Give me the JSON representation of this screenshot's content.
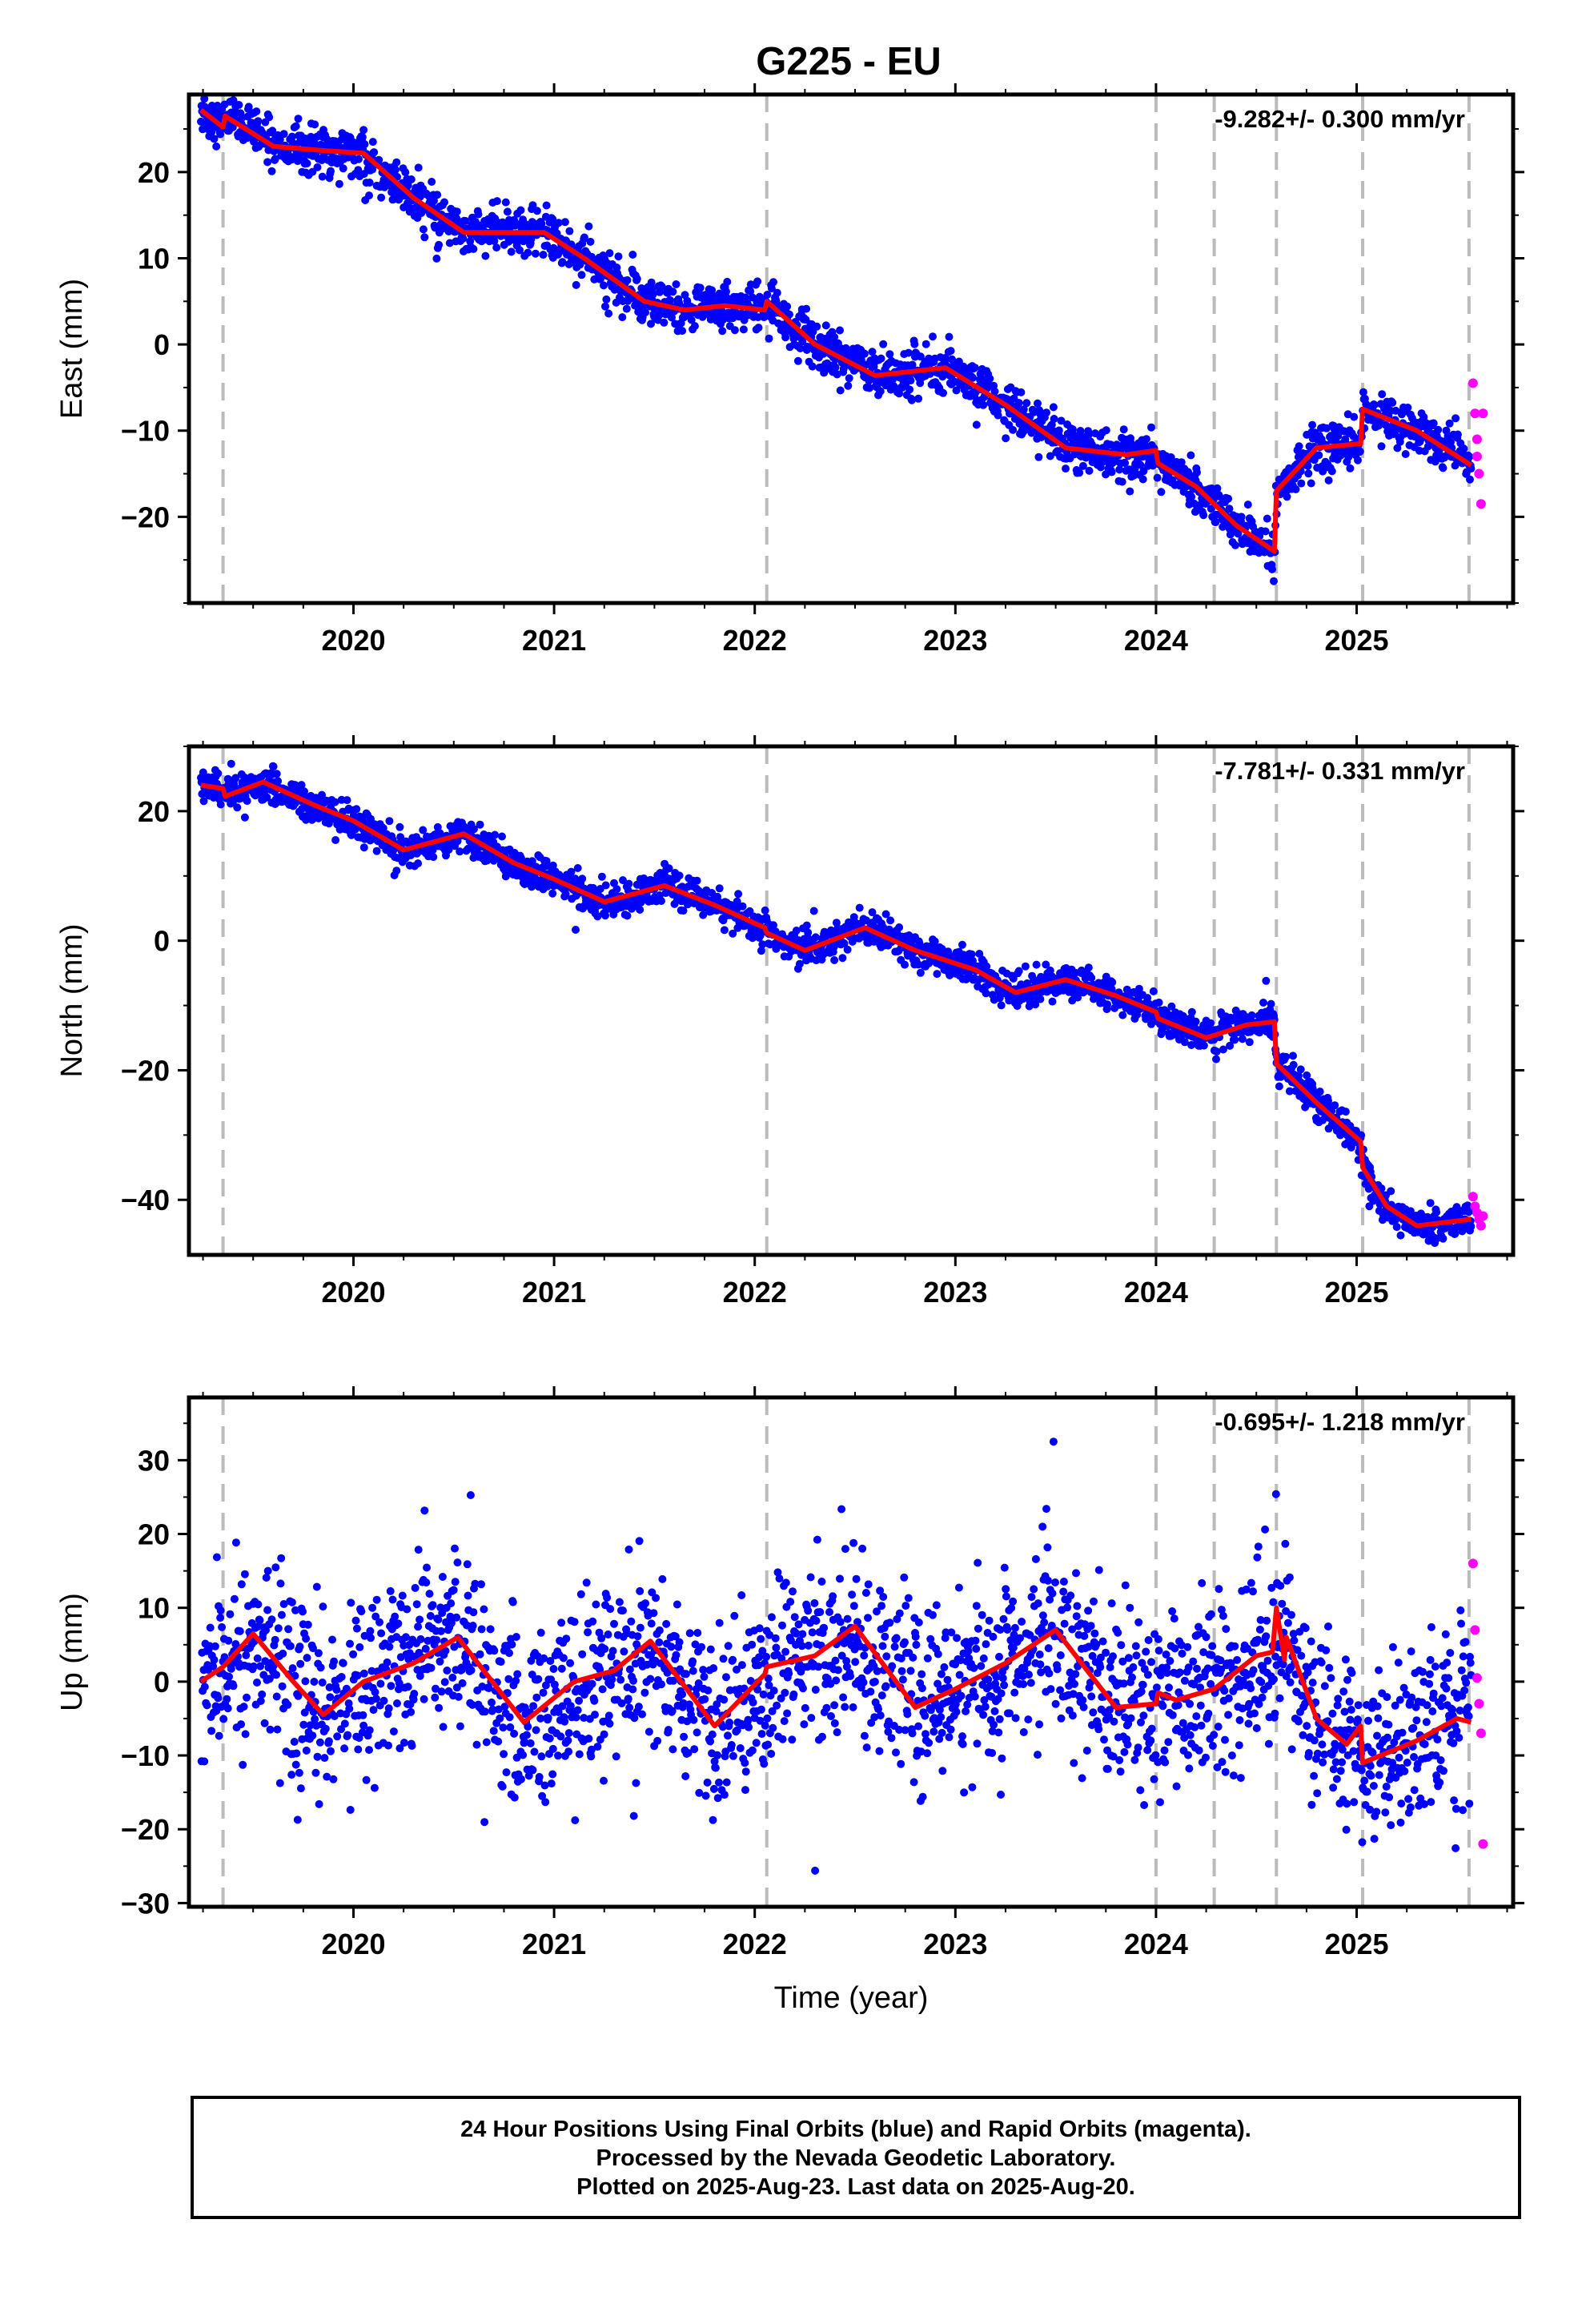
{
  "title": "G225 - EU",
  "colors": {
    "final_orbits": "#0000ff",
    "rapid_orbits": "#ff00ff",
    "model": "#ff0000",
    "event_lines": "#bbbbbb",
    "frame": "#000000"
  },
  "footer": {
    "line1": "24 Hour Positions Using Final Orbits (blue) and Rapid Orbits (magenta).",
    "line2": "Processed by the Nevada Geodetic Laboratory.",
    "line3": "Plotted on 2025-Aug-23. Last data on 2025-Aug-20."
  },
  "chart_data": [
    {
      "type": "scatter",
      "panel": "east",
      "ylabel": "East (mm)",
      "xlabel": "",
      "rate_label": "-9.282+/- 0.300 mm/yr",
      "xlim": [
        2019.18,
        2025.78
      ],
      "ylim": [
        -30,
        29
      ],
      "xticks": [
        2020,
        2021,
        2022,
        2023,
        2024,
        2025
      ],
      "yticks": [
        -20,
        -10,
        0,
        10,
        20
      ],
      "event_lines": [
        2019.35,
        2022.06,
        2024.0,
        2024.29,
        2024.6,
        2025.03,
        2025.56
      ],
      "model": {
        "x": [
          2019.24,
          2019.35,
          2019.36,
          2019.6,
          2019.85,
          2020.05,
          2020.3,
          2020.55,
          2020.75,
          2020.95,
          2021.15,
          2021.45,
          2021.65,
          2021.85,
          2022.05,
          2022.06,
          2022.3,
          2022.6,
          2022.95,
          2023.25,
          2023.55,
          2023.85,
          2024.0,
          2024.01,
          2024.2,
          2024.4,
          2024.59,
          2024.6,
          2024.8,
          2025.02,
          2025.03,
          2025.3,
          2025.57
        ],
        "y": [
          27.2,
          25.2,
          26.5,
          23.0,
          22.5,
          22.2,
          17.0,
          13.0,
          13.0,
          13.0,
          10.0,
          5.0,
          4.0,
          4.5,
          4.0,
          5.0,
          0.0,
          -3.6,
          -2.7,
          -7.0,
          -12.0,
          -12.8,
          -12.3,
          -13.8,
          -16.5,
          -21.0,
          -24.0,
          -17.0,
          -12.0,
          -11.5,
          -7.5,
          -10.0,
          -14.0
        ]
      },
      "rapid": {
        "x": [
          2025.58,
          2025.59,
          2025.6,
          2025.6,
          2025.61,
          2025.62,
          2025.63
        ],
        "y": [
          -4.5,
          -8.0,
          -11.0,
          -13.0,
          -15.0,
          -18.5,
          -8.0
        ]
      }
    },
    {
      "type": "scatter",
      "panel": "north",
      "ylabel": "North (mm)",
      "xlabel": "",
      "rate_label": "-7.781+/- 0.331 mm/yr",
      "xlim": [
        2019.18,
        2025.78
      ],
      "ylim": [
        -48.5,
        30
      ],
      "xticks": [
        2020,
        2021,
        2022,
        2023,
        2024,
        2025
      ],
      "yticks": [
        -40,
        -20,
        0,
        20
      ],
      "event_lines": [
        2019.35,
        2022.06,
        2024.0,
        2024.29,
        2024.6,
        2025.03,
        2025.56
      ],
      "model": {
        "x": [
          2019.24,
          2019.35,
          2019.36,
          2019.55,
          2019.8,
          2020.0,
          2020.25,
          2020.55,
          2020.8,
          2021.0,
          2021.25,
          2021.55,
          2021.8,
          2022.05,
          2022.06,
          2022.25,
          2022.55,
          2022.8,
          2023.1,
          2023.3,
          2023.55,
          2023.8,
          2024.0,
          2024.01,
          2024.25,
          2024.45,
          2024.59,
          2024.6,
          2024.8,
          2025.02,
          2025.03,
          2025.15,
          2025.3,
          2025.57
        ],
        "y": [
          24.0,
          23.5,
          22.3,
          24.5,
          21.0,
          18.5,
          14.0,
          16.5,
          12.0,
          9.5,
          6.0,
          8.5,
          5.5,
          2.0,
          1.2,
          -1.5,
          2.0,
          -1.5,
          -4.5,
          -8.0,
          -6.0,
          -8.5,
          -11.0,
          -12.0,
          -15.0,
          -13.0,
          -12.5,
          -19.0,
          -25.0,
          -31.0,
          -35.0,
          -41.0,
          -44.0,
          -43.0
        ]
      },
      "rapid": {
        "x": [
          2025.58,
          2025.59,
          2025.6,
          2025.61,
          2025.62,
          2025.63
        ],
        "y": [
          -39.5,
          -41.0,
          -42.0,
          -43.0,
          -44.0,
          -42.5
        ]
      }
    },
    {
      "type": "scatter",
      "panel": "up",
      "ylabel": "Up (mm)",
      "xlabel": "Time (year)",
      "rate_label": "-0.695+/- 1.218 mm/yr",
      "xlim": [
        2019.18,
        2025.78
      ],
      "ylim": [
        -30.5,
        38.5
      ],
      "xticks": [
        2020,
        2021,
        2022,
        2023,
        2024,
        2025
      ],
      "yticks": [
        -30,
        -20,
        -10,
        0,
        10,
        20,
        30
      ],
      "event_lines": [
        2019.35,
        2022.06,
        2024.0,
        2024.29,
        2024.6,
        2025.03,
        2025.56
      ],
      "model": {
        "x": [
          2019.24,
          2019.35,
          2019.5,
          2019.7,
          2019.85,
          2020.05,
          2020.3,
          2020.52,
          2020.85,
          2021.1,
          2021.3,
          2021.48,
          2021.8,
          2022.05,
          2022.06,
          2022.3,
          2022.5,
          2022.8,
          2023.0,
          2023.25,
          2023.5,
          2023.8,
          2024.0,
          2024.01,
          2024.1,
          2024.29,
          2024.5,
          2024.58,
          2024.6,
          2024.64,
          2024.65,
          2024.8,
          2024.95,
          2025.02,
          2025.03,
          2025.3,
          2025.5,
          2025.57
        ],
        "y": [
          0.0,
          2.0,
          6.5,
          0.0,
          -4.5,
          0.0,
          2.5,
          6.0,
          -5.5,
          0.0,
          1.5,
          5.5,
          -6.0,
          1.0,
          2.0,
          3.5,
          7.5,
          -3.5,
          -1.0,
          2.5,
          7.0,
          -3.5,
          -3.0,
          -1.5,
          -2.5,
          -1.0,
          3.5,
          4.0,
          10.0,
          3.0,
          6.0,
          -5.0,
          -8.5,
          -6.0,
          -11.0,
          -8.0,
          -5.0,
          -5.5
        ]
      },
      "rapid": {
        "x": [
          2025.58,
          2025.59,
          2025.6,
          2025.61,
          2025.62,
          2025.63
        ],
        "y": [
          16.0,
          7.0,
          0.5,
          -3.0,
          -7.0,
          -22.0
        ]
      }
    }
  ]
}
